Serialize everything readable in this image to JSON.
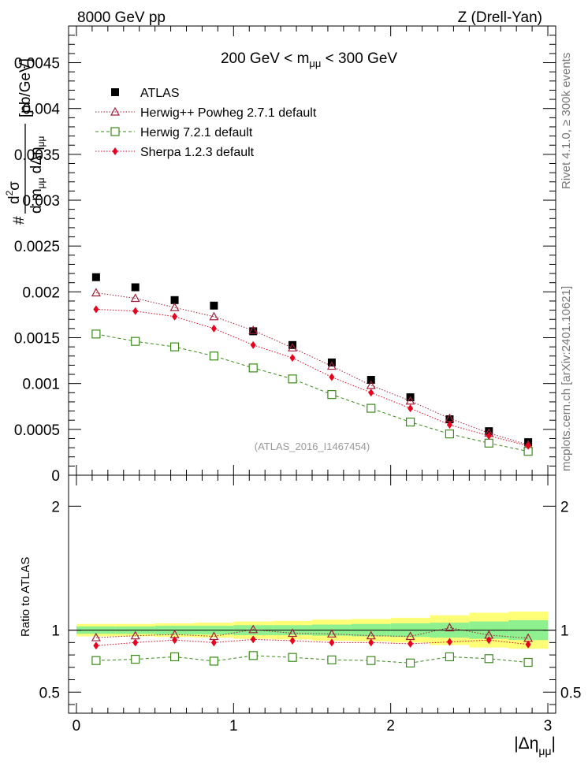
{
  "header": {
    "left": "8000 GeV pp",
    "right": "Z (Drell-Yan)"
  },
  "side": {
    "rivet": "Rivet 4.1.0, ≥ 300k events",
    "mcplots": "mcplots.cern.ch [arXiv:2401.10621]"
  },
  "chart_data": {
    "type": "scatter",
    "title": "200 GeV < m_μμ < 300 GeV",
    "title_parts": {
      "pre": "200 GeV < m",
      "sub": "μμ",
      "post": " < 300 GeV"
    },
    "ylabel_parts": {
      "hash": "#",
      "d2": "d",
      "sq": "2",
      "sigma": "σ",
      "den": "d m",
      "den_sub": "μμ",
      "den2": " dΔη",
      "den2_sub": "μμ",
      "unit": "[pb/GeV]"
    },
    "xlabel_parts": {
      "main": "|Δη",
      "sub": "μμ",
      "end": "|"
    },
    "watermark": "(ATLAS_2016_I1467454)",
    "xlim": [
      -0.05,
      3.05
    ],
    "ylim": [
      0,
      0.0049
    ],
    "ratio_ylim": [
      0.33,
      2.25
    ],
    "ratio_ylabel": "Ratio to ATLAS",
    "x_ticks": [
      0,
      1,
      2,
      3
    ],
    "x_tick_labels": [
      "0",
      "1",
      "2",
      "3"
    ],
    "y_ticks": [
      0,
      0.0005,
      0.001,
      0.0015,
      0.002,
      0.0025,
      0.003,
      0.0035,
      0.004,
      0.0045
    ],
    "y_tick_labels": [
      "0",
      "0.0005",
      "0.001",
      "0.0015",
      "0.002",
      "0.0025",
      "0.003",
      "0.0035",
      "0.004",
      "0.0045"
    ],
    "ratio_ticks": [
      0.5,
      1,
      2
    ],
    "ratio_tick_labels": [
      "0.5",
      "1",
      "2"
    ],
    "x": [
      0.125,
      0.375,
      0.625,
      0.875,
      1.125,
      1.375,
      1.625,
      1.875,
      2.125,
      2.375,
      2.625,
      2.875
    ],
    "bin_edges": [
      0,
      0.25,
      0.5,
      0.75,
      1.0,
      1.25,
      1.5,
      1.75,
      2.0,
      2.25,
      2.5,
      2.75,
      3.0
    ],
    "band_inner": [
      0.03,
      0.03,
      0.035,
      0.035,
      0.04,
      0.04,
      0.045,
      0.05,
      0.055,
      0.06,
      0.07,
      0.08
    ],
    "band_outer": [
      0.05,
      0.05,
      0.055,
      0.06,
      0.07,
      0.075,
      0.085,
      0.09,
      0.1,
      0.12,
      0.14,
      0.15
    ],
    "series": [
      {
        "name": "ATLAS",
        "color": "#000000",
        "marker": "square-filled",
        "values": [
          0.00216,
          0.00205,
          0.00191,
          0.00185,
          0.00157,
          0.00142,
          0.00123,
          0.00104,
          0.00085,
          0.00061,
          0.00048,
          0.00036
        ],
        "ratio": [
          1,
          1,
          1,
          1,
          1,
          1,
          1,
          1,
          1,
          1,
          1,
          1
        ]
      },
      {
        "name": "Herwig++ Powheg 2.7.1 default",
        "color": "#a0203a",
        "marker": "triangle-open",
        "line": "dotted",
        "values": [
          0.00199,
          0.00193,
          0.00183,
          0.00173,
          0.00158,
          0.00139,
          0.00119,
          0.00098,
          0.00081,
          0.00062,
          0.00046,
          0.00033
        ],
        "ratio": [
          0.94,
          0.955,
          0.965,
          0.95,
          1.005,
          0.975,
          0.97,
          0.955,
          0.95,
          1.02,
          0.96,
          0.935
        ]
      },
      {
        "name": "Herwig 7.2.1 default",
        "color": "#3a8a1a",
        "marker": "square-open",
        "line": "dashed",
        "values": [
          0.00154,
          0.00146,
          0.0014,
          0.0013,
          0.00117,
          0.00105,
          0.00088,
          0.00073,
          0.00058,
          0.00045,
          0.00035,
          0.00026
        ],
        "ratio": [
          0.755,
          0.765,
          0.785,
          0.75,
          0.795,
          0.78,
          0.76,
          0.755,
          0.735,
          0.785,
          0.77,
          0.74
        ]
      },
      {
        "name": "Sherpa 1.2.3 default",
        "color": "#e8001c",
        "marker": "diamond-filled",
        "line": "dotted",
        "values": [
          0.00181,
          0.00179,
          0.00173,
          0.0016,
          0.00142,
          0.00128,
          0.00107,
          0.0009,
          0.00073,
          0.00055,
          0.00043,
          0.00032
        ],
        "ratio": [
          0.875,
          0.9,
          0.92,
          0.9,
          0.925,
          0.915,
          0.9,
          0.9,
          0.89,
          0.905,
          0.92,
          0.885
        ]
      }
    ]
  }
}
